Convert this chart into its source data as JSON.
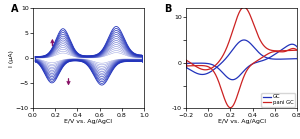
{
  "panel_A": {
    "label": "A",
    "xlabel": "E/V vs. Ag/AgCl",
    "ylabel": "I (μA)",
    "xlim": [
      0.0,
      1.0
    ],
    "ylim": [
      -10,
      10
    ],
    "xticks": [
      0.0,
      0.2,
      0.4,
      0.6,
      0.8,
      1.0
    ],
    "yticks": [
      -10,
      -8,
      -6,
      -4,
      -2,
      0,
      2,
      4,
      6,
      8,
      10
    ],
    "line_color": "#2233bb",
    "arrow_color": "#881166",
    "n_cycles": 14
  },
  "panel_B": {
    "label": "B",
    "xlabel": "E/V vs. Ag/AgCl",
    "ylabel": "",
    "xlim": [
      -0.2,
      0.8
    ],
    "ylim": [
      -10,
      12
    ],
    "xticks": [
      -0.2,
      0.0,
      0.2,
      0.4,
      0.6,
      0.8
    ],
    "yticks": [
      -10,
      -8,
      -6,
      -4,
      -2,
      0,
      2,
      4,
      6,
      8,
      10,
      12
    ],
    "gc_color": "#2233bb",
    "pani_color": "#cc2222",
    "legend_labels": [
      "GC",
      "pani GC"
    ]
  }
}
